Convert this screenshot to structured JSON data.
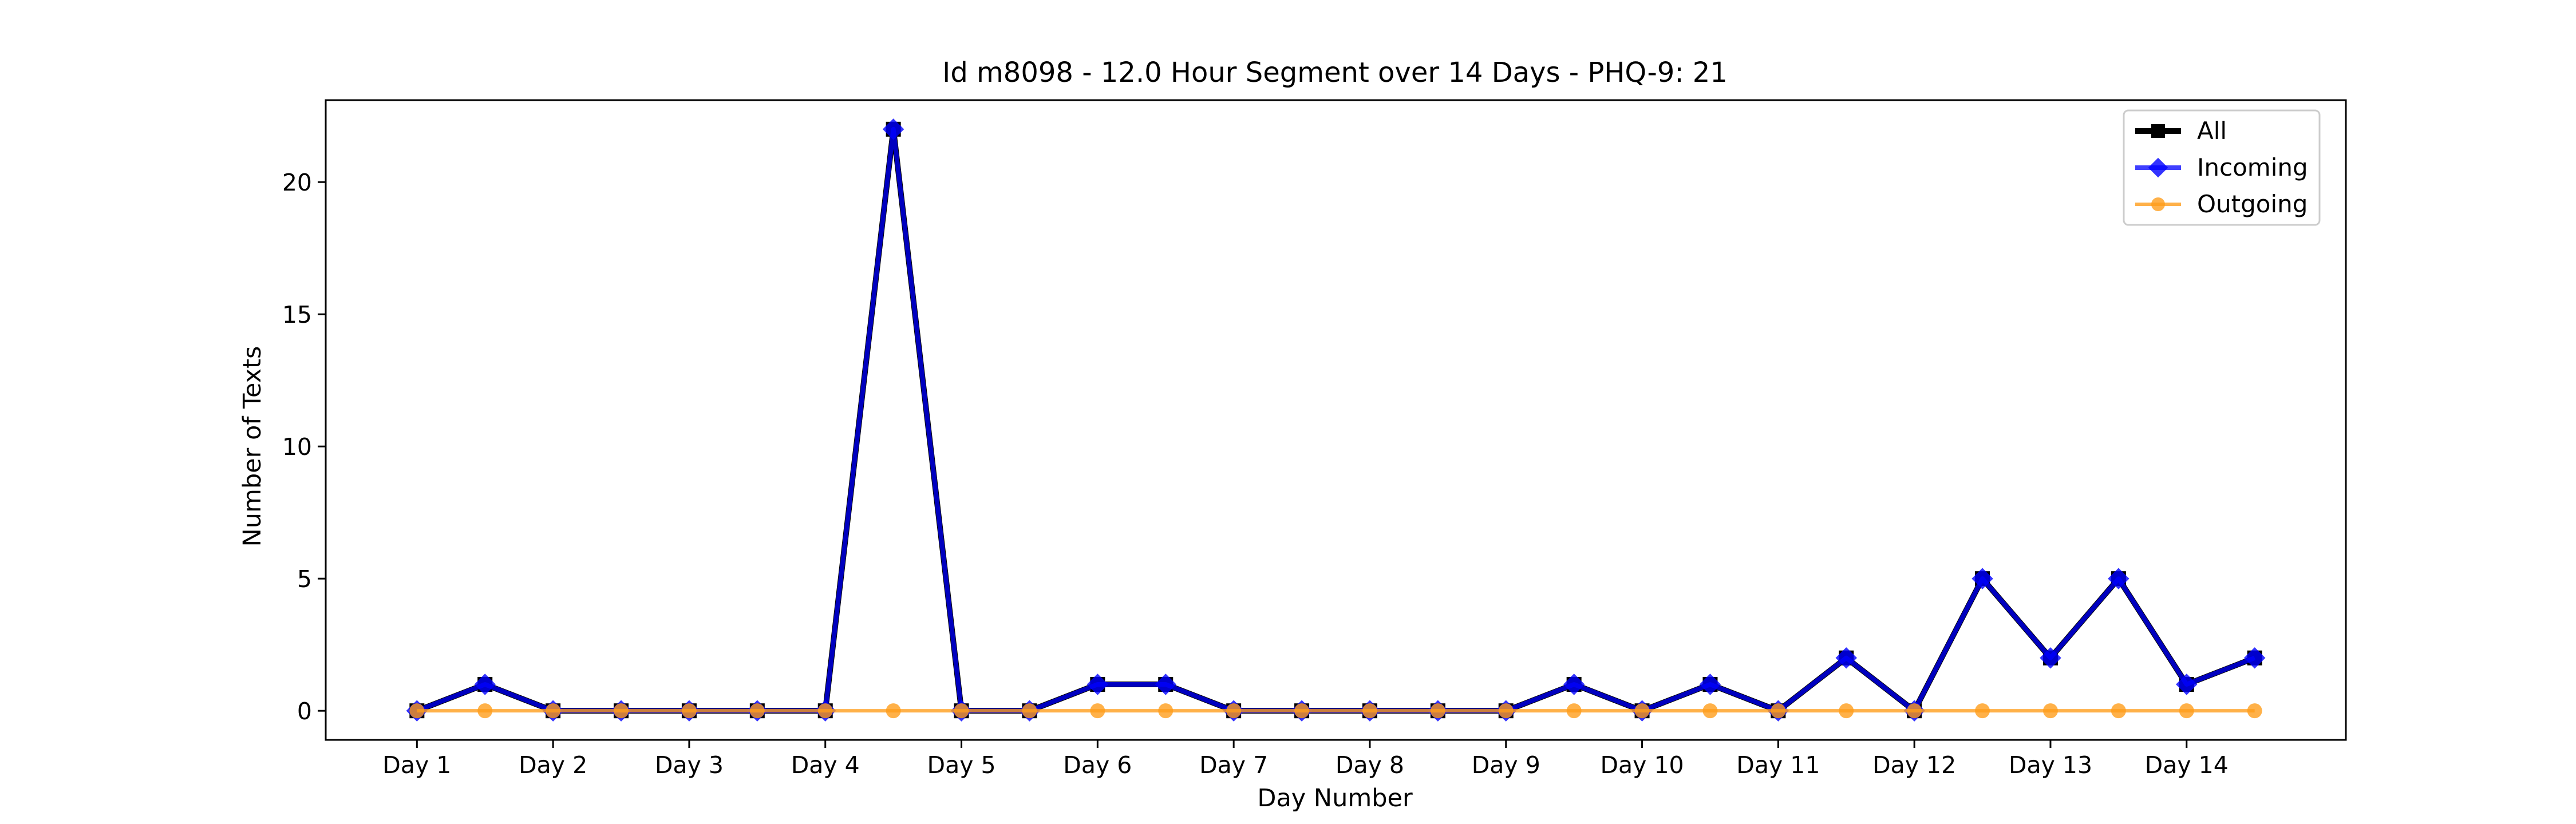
{
  "chart_data": {
    "type": "line",
    "title": "Id m8098 - 12.0 Hour Segment over 14 Days - PHQ-9: 21",
    "xlabel": "Day Number",
    "ylabel": "Number of Texts",
    "ylim": [
      -1.1,
      23.1
    ],
    "yticks": [
      0,
      5,
      10,
      15,
      20
    ],
    "categories": [
      "Day 1",
      "Day 2",
      "Day 3",
      "Day 4",
      "Day 5",
      "Day 6",
      "Day 7",
      "Day 8",
      "Day 9",
      "Day 10",
      "Day 11",
      "Day 12",
      "Day 13",
      "Day 14"
    ],
    "grid": false,
    "legend_position": "top-right",
    "x": [
      1,
      1.5,
      2,
      2.5,
      3,
      3.5,
      4,
      4.5,
      5,
      5.5,
      6,
      6.5,
      7,
      7.5,
      8,
      8.5,
      9,
      9.5,
      10,
      10.5,
      11,
      11.5,
      12,
      12.5,
      13,
      13.5,
      14,
      14.5
    ],
    "series": [
      {
        "name": "All",
        "color": "#000000",
        "marker": "square",
        "values": [
          0,
          1,
          0,
          0,
          0,
          0,
          0,
          22,
          0,
          0,
          1,
          1,
          0,
          0,
          0,
          0,
          0,
          1,
          0,
          1,
          0,
          2,
          0,
          5,
          2,
          5,
          1,
          2
        ]
      },
      {
        "name": "Incoming",
        "color": "#0000ff",
        "marker": "diamond",
        "values": [
          0,
          1,
          0,
          0,
          0,
          0,
          0,
          22,
          0,
          0,
          1,
          1,
          0,
          0,
          0,
          0,
          0,
          1,
          0,
          1,
          0,
          2,
          0,
          5,
          2,
          5,
          1,
          2
        ]
      },
      {
        "name": "Outgoing",
        "color": "#ff9e1b",
        "marker": "circle",
        "values": [
          0,
          0,
          0,
          0,
          0,
          0,
          0,
          0,
          0,
          0,
          0,
          0,
          0,
          0,
          0,
          0,
          0,
          0,
          0,
          0,
          0,
          0,
          0,
          0,
          0,
          0,
          0,
          0
        ]
      }
    ]
  }
}
